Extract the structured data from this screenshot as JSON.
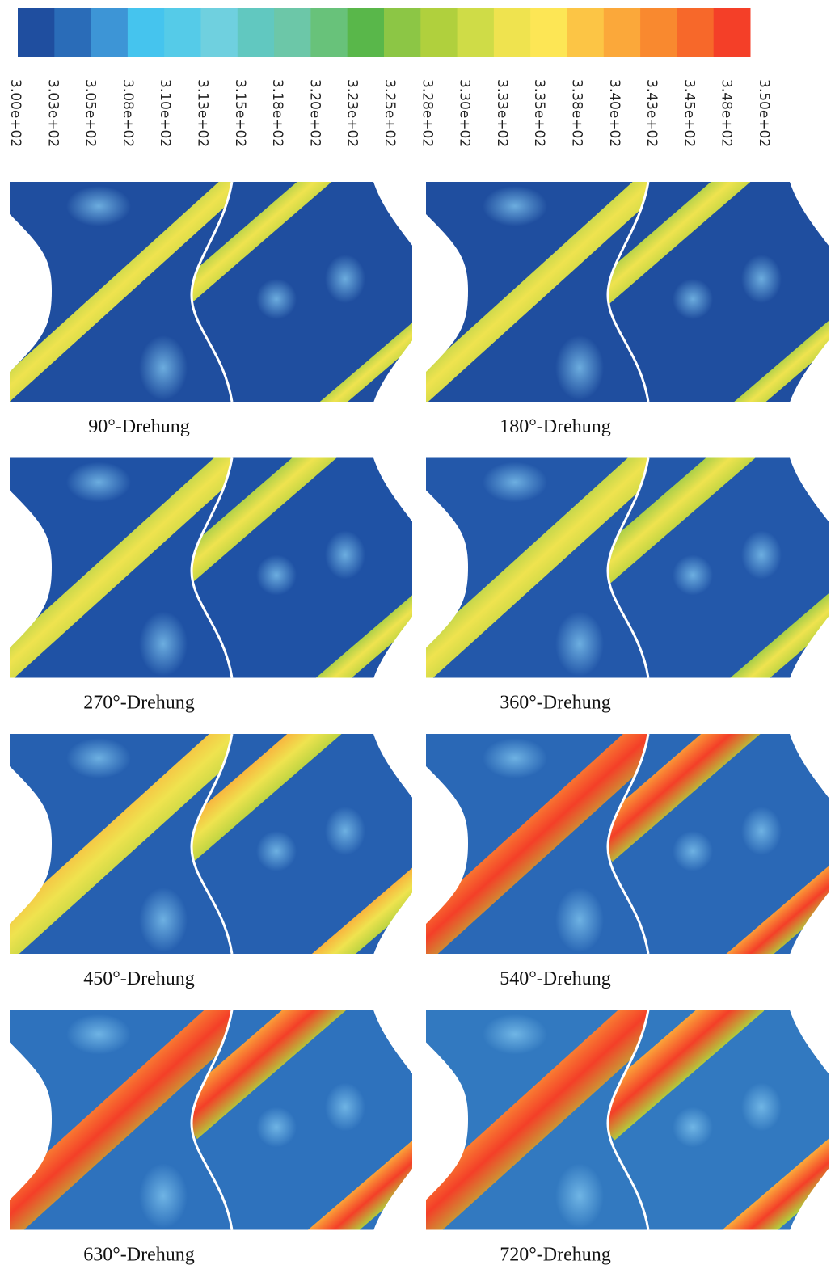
{
  "colorbar": {
    "colors": [
      "#1f4e9f",
      "#2a6cb8",
      "#3d95d6",
      "#45c4ee",
      "#55cbe8",
      "#6fd0df",
      "#61c8c0",
      "#6cc7a8",
      "#68c27a",
      "#59b74a",
      "#8cc645",
      "#b0d03d",
      "#cfdc47",
      "#efe34f",
      "#fde655",
      "#fcc545",
      "#fba83a",
      "#f9892f",
      "#f7682a",
      "#f43f28"
    ],
    "labels": [
      "3.00e+02",
      "3.03e+02",
      "3.05e+02",
      "3.08e+02",
      "3.10e+02",
      "3.13e+02",
      "3.15e+02",
      "3.18e+02",
      "3.20e+02",
      "3.23e+02",
      "3.25e+02",
      "3.28e+02",
      "3.30e+02",
      "3.33e+02",
      "3.35e+02",
      "3.38e+02",
      "3.40e+02",
      "3.43e+02",
      "3.45e+02",
      "3.48e+02",
      "3.50e+02"
    ]
  },
  "panels": [
    {
      "caption": "90°-Drehung"
    },
    {
      "caption": "180°-Drehung"
    },
    {
      "caption": "270°-Drehung"
    },
    {
      "caption": "360°-Drehung"
    },
    {
      "caption": "450°-Drehung"
    },
    {
      "caption": "540°-Drehung"
    },
    {
      "caption": "630°-Drehung"
    },
    {
      "caption": "720°-Drehung"
    }
  ]
}
